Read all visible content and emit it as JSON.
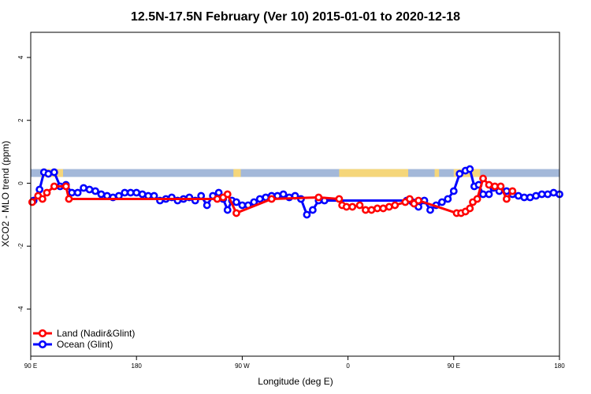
{
  "chart_data": {
    "type": "line",
    "title": "12.5N-17.5N February (Ver 10)   2015-01-01 to 2020-12-18",
    "xlabel": "Longitude (deg E)",
    "ylabel": "XCO2 - MLO trend (ppm)",
    "xlim": [
      90,
      450
    ],
    "ylim": [
      -5.5,
      4.8
    ],
    "x_ticks": [
      90,
      162,
      234,
      306,
      378,
      450
    ],
    "x_tick_labels": [
      "90 E",
      "180",
      "90 W",
      "0",
      "90 E",
      "180"
    ],
    "y_ticks": [
      -4,
      -2,
      0,
      2,
      4
    ],
    "y_tick_labels": [
      "-4",
      "-2",
      "0",
      "2",
      "4"
    ],
    "grid": false,
    "legend_position": "bottom-left",
    "band": {
      "y_from": 0.2,
      "y_to": 0.45,
      "ocean_color": "#a3b8d9",
      "land_color": "#f5d67a"
    },
    "land_segments": [
      [
        97,
        112
      ],
      [
        228,
        233
      ],
      [
        300,
        347
      ],
      [
        365,
        368
      ],
      [
        378,
        396
      ]
    ],
    "series": [
      {
        "name": "Land (Nadir&Glint)",
        "color": "#ff0000",
        "x": [
          91,
          95,
          98,
          101,
          106,
          114,
          116,
          217,
          221,
          224,
          230,
          254,
          286,
          300,
          302,
          305,
          309,
          314,
          318,
          322,
          326,
          330,
          334,
          338,
          345,
          348,
          351,
          354,
          380,
          383,
          386,
          389,
          391,
          394,
          398,
          402,
          406,
          410,
          414,
          418
        ],
        "y": [
          -0.6,
          -0.4,
          -0.5,
          -0.3,
          -0.1,
          -0.1,
          -0.5,
          -0.5,
          -0.45,
          -0.35,
          -0.95,
          -0.5,
          -0.45,
          -0.5,
          -0.7,
          -0.75,
          -0.75,
          -0.7,
          -0.85,
          -0.85,
          -0.8,
          -0.8,
          -0.75,
          -0.7,
          -0.6,
          -0.5,
          -0.65,
          -0.55,
          -0.95,
          -0.95,
          -0.9,
          -0.8,
          -0.6,
          -0.5,
          0.15,
          -0.05,
          -0.1,
          -0.1,
          -0.5,
          -0.25
        ]
      },
      {
        "name": "Ocean (Glint)",
        "color": "#0000ff",
        "x": [
          92,
          96,
          99,
          102,
          106,
          110,
          114,
          118,
          122,
          126,
          130,
          134,
          138,
          142,
          146,
          150,
          154,
          158,
          162,
          166,
          170,
          174,
          178,
          182,
          186,
          190,
          194,
          198,
          202,
          206,
          210,
          214,
          218,
          221,
          224,
          227,
          230,
          234,
          238,
          242,
          246,
          250,
          254,
          258,
          262,
          266,
          270,
          274,
          278,
          282,
          286,
          290,
          346,
          350,
          354,
          358,
          362,
          366,
          370,
          374,
          378,
          382,
          386,
          389,
          392,
          395,
          398,
          402,
          405,
          409,
          414,
          418,
          422,
          426,
          430,
          434,
          438,
          442,
          446,
          450
        ],
        "y": [
          -0.55,
          -0.2,
          0.35,
          0.3,
          0.35,
          -0.1,
          -0.05,
          -0.3,
          -0.3,
          -0.15,
          -0.2,
          -0.25,
          -0.35,
          -0.4,
          -0.45,
          -0.4,
          -0.3,
          -0.3,
          -0.3,
          -0.35,
          -0.4,
          -0.4,
          -0.55,
          -0.5,
          -0.45,
          -0.55,
          -0.5,
          -0.45,
          -0.55,
          -0.4,
          -0.7,
          -0.4,
          -0.3,
          -0.5,
          -0.85,
          -0.55,
          -0.6,
          -0.7,
          -0.7,
          -0.6,
          -0.5,
          -0.45,
          -0.4,
          -0.4,
          -0.35,
          -0.45,
          -0.4,
          -0.5,
          -1.0,
          -0.85,
          -0.55,
          -0.55,
          -0.55,
          -0.6,
          -0.75,
          -0.55,
          -0.85,
          -0.7,
          -0.6,
          -0.5,
          -0.25,
          0.3,
          0.4,
          0.45,
          -0.1,
          -0.05,
          -0.35,
          -0.35,
          -0.15,
          -0.25,
          -0.25,
          -0.35,
          -0.4,
          -0.45,
          -0.45,
          -0.4,
          -0.35,
          -0.35,
          -0.3,
          -0.35
        ]
      }
    ]
  }
}
